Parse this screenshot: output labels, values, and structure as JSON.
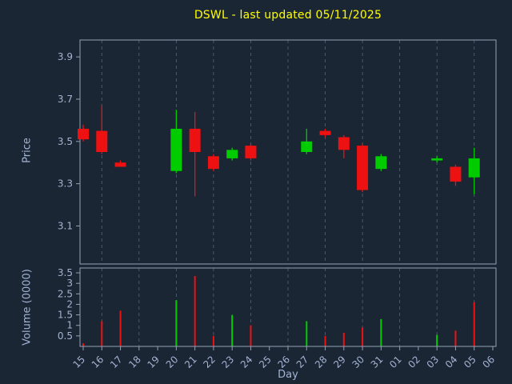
{
  "colors": {
    "background": "#1b2634",
    "title": "#ffff00",
    "axis_text": "#a3b3d3",
    "spine": "#93a1b4",
    "grid": "#5c6c80",
    "up": "#00cc00",
    "down": "#ee1111"
  },
  "chart_data": {
    "type": "candlestick",
    "title": "DSWL - last updated 05/11/2025",
    "xlabel": "Day",
    "price_label": "Price",
    "volume_label": "Volume (0000)",
    "categories": [
      "15",
      "16",
      "17",
      "18",
      "19",
      "20",
      "21",
      "22",
      "23",
      "24",
      "25",
      "26",
      "27",
      "28",
      "29",
      "30",
      "31",
      "01",
      "02",
      "03",
      "04",
      "05",
      "06"
    ],
    "price_ticks": [
      "3.9",
      "3.7",
      "3.5",
      "3.3",
      "3.1"
    ],
    "price_tick_values": [
      3.9,
      3.7,
      3.5,
      3.3,
      3.1
    ],
    "price_range": [
      2.92,
      3.98
    ],
    "volume_ticks": [
      "3.5",
      "3",
      "2.5",
      "2",
      "1.5",
      "1",
      "0.5"
    ],
    "volume_tick_values": [
      3.5,
      3.0,
      2.5,
      2.0,
      1.5,
      1.0,
      0.5
    ],
    "volume_range": [
      0,
      3.73
    ],
    "grid": "vertical-dashed",
    "grid_day_indices": [
      1,
      3,
      5,
      7,
      9,
      11,
      13,
      15,
      17,
      19,
      21
    ],
    "candles": [
      {
        "day": "15",
        "i": 0,
        "open": 3.56,
        "high": 3.58,
        "low": 3.5,
        "close": 3.51,
        "volume": 0.15,
        "direction": "down",
        "volume_direction": "down"
      },
      {
        "day": "16",
        "i": 1,
        "open": 3.55,
        "high": 3.67,
        "low": 3.44,
        "close": 3.45,
        "volume": 1.2,
        "direction": "down",
        "volume_direction": "down"
      },
      {
        "day": "17",
        "i": 2,
        "open": 3.4,
        "high": 3.41,
        "low": 3.38,
        "close": 3.38,
        "volume": 1.7,
        "direction": "down",
        "volume_direction": "down"
      },
      {
        "day": "20",
        "i": 5,
        "open": 3.36,
        "high": 3.65,
        "low": 3.35,
        "close": 3.56,
        "volume": 2.2,
        "direction": "up",
        "volume_direction": "up"
      },
      {
        "day": "21",
        "i": 6,
        "open": 3.56,
        "high": 3.64,
        "low": 3.24,
        "close": 3.45,
        "volume": 3.35,
        "direction": "down",
        "volume_direction": "down"
      },
      {
        "day": "22",
        "i": 7,
        "open": 3.43,
        "high": 3.44,
        "low": 3.36,
        "close": 3.37,
        "volume": 0.5,
        "direction": "down",
        "volume_direction": "down"
      },
      {
        "day": "23",
        "i": 8,
        "open": 3.42,
        "high": 3.47,
        "low": 3.41,
        "close": 3.46,
        "volume": 1.5,
        "direction": "up",
        "volume_direction": "up"
      },
      {
        "day": "24",
        "i": 9,
        "open": 3.48,
        "high": 3.49,
        "low": 3.41,
        "close": 3.42,
        "volume": 1.0,
        "direction": "down",
        "volume_direction": "down"
      },
      {
        "day": "27",
        "i": 12,
        "open": 3.45,
        "high": 3.56,
        "low": 3.44,
        "close": 3.5,
        "volume": 1.2,
        "direction": "up",
        "volume_direction": "up"
      },
      {
        "day": "28",
        "i": 13,
        "open": 3.55,
        "high": 3.56,
        "low": 3.52,
        "close": 3.53,
        "volume": 0.5,
        "direction": "down",
        "volume_direction": "down"
      },
      {
        "day": "29",
        "i": 14,
        "open": 3.52,
        "high": 3.53,
        "low": 3.42,
        "close": 3.46,
        "volume": 0.65,
        "direction": "down",
        "volume_direction": "down"
      },
      {
        "day": "30",
        "i": 15,
        "open": 3.48,
        "high": 3.49,
        "low": 3.26,
        "close": 3.27,
        "volume": 0.9,
        "direction": "down",
        "volume_direction": "down"
      },
      {
        "day": "31",
        "i": 16,
        "open": 3.37,
        "high": 3.44,
        "low": 3.36,
        "close": 3.43,
        "volume": 1.3,
        "direction": "up",
        "volume_direction": "up"
      },
      {
        "day": "03",
        "i": 19,
        "open": 3.41,
        "high": 3.43,
        "low": 3.4,
        "close": 3.42,
        "volume": 0.55,
        "direction": "up",
        "volume_direction": "up"
      },
      {
        "day": "04",
        "i": 20,
        "open": 3.38,
        "high": 3.39,
        "low": 3.29,
        "close": 3.31,
        "volume": 0.75,
        "direction": "down",
        "volume_direction": "down"
      },
      {
        "day": "05",
        "i": 21,
        "open": 3.33,
        "high": 3.47,
        "low": 3.25,
        "close": 3.42,
        "volume": 2.1,
        "direction": "up",
        "volume_direction": "down"
      }
    ]
  }
}
